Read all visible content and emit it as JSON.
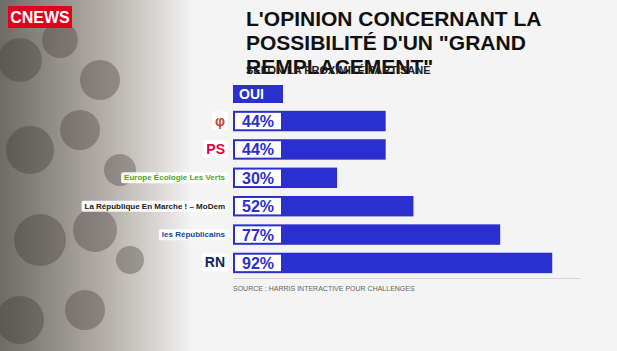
{
  "chart_data": {
    "type": "bar",
    "orientation": "horizontal",
    "logo_text": "CNEWS",
    "title": "L'OPINION CONCERNANT LA POSSIBILITÉ D'UN \"GRAND REMPLACEMENT\"",
    "subtitle": "SELON LA PROXIMITÉ PARTISANE",
    "source": "SOURCE : HARRIS INTERACTIVE POUR CHALLENGES",
    "categories": [
      "φ",
      "PS",
      "Europe Écologie Les Verts",
      "La République En Marche ! – MoDem",
      "les Républicains",
      "RN"
    ],
    "series": [
      {
        "name": "OUI",
        "color": "#2b2fce",
        "values": [
          44,
          44,
          30,
          52,
          77,
          92
        ],
        "value_labels": [
          "44%",
          "44%",
          "30%",
          "52%",
          "77%",
          "92%"
        ]
      }
    ],
    "xlim": [
      0,
      100
    ],
    "xticks": [],
    "grid": false,
    "data_labels": true,
    "tick_labels": "y"
  }
}
